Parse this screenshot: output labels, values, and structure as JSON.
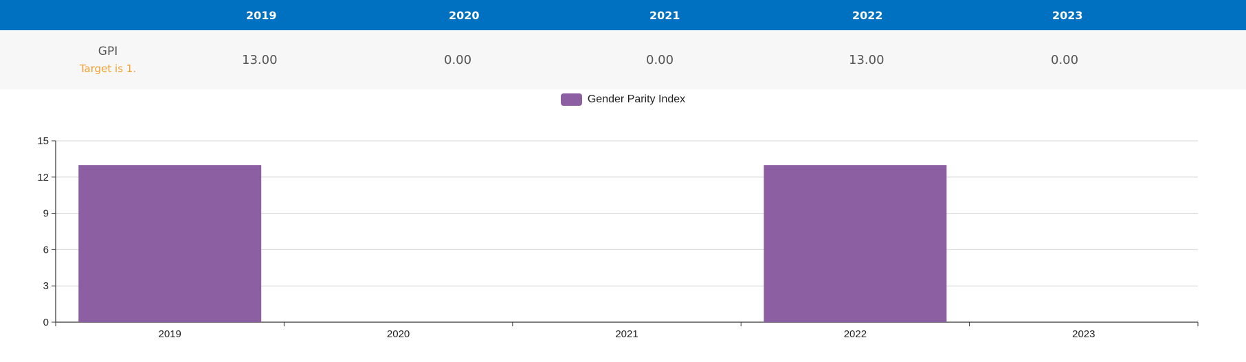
{
  "table": {
    "headers": [
      "",
      "2019",
      "2020",
      "2021",
      "2022",
      "2023"
    ],
    "row": {
      "label": "GPI",
      "note": "Target is 1.",
      "values": [
        "13.00",
        "0.00",
        "0.00",
        "13.00",
        "0.00"
      ]
    }
  },
  "colors": {
    "header_bg": "#0070c0",
    "bar": "#8c5fa3",
    "note": "#f0a030"
  },
  "chart_data": {
    "type": "bar",
    "categories": [
      "2019",
      "2020",
      "2021",
      "2022",
      "2023"
    ],
    "series": [
      {
        "name": "Gender Parity Index",
        "values": [
          13,
          0,
          0,
          13,
          0
        ]
      }
    ],
    "ylim": [
      0,
      15
    ],
    "yticks": [
      0,
      3,
      6,
      9,
      12,
      15
    ],
    "grid": true,
    "legend": "top-center"
  }
}
